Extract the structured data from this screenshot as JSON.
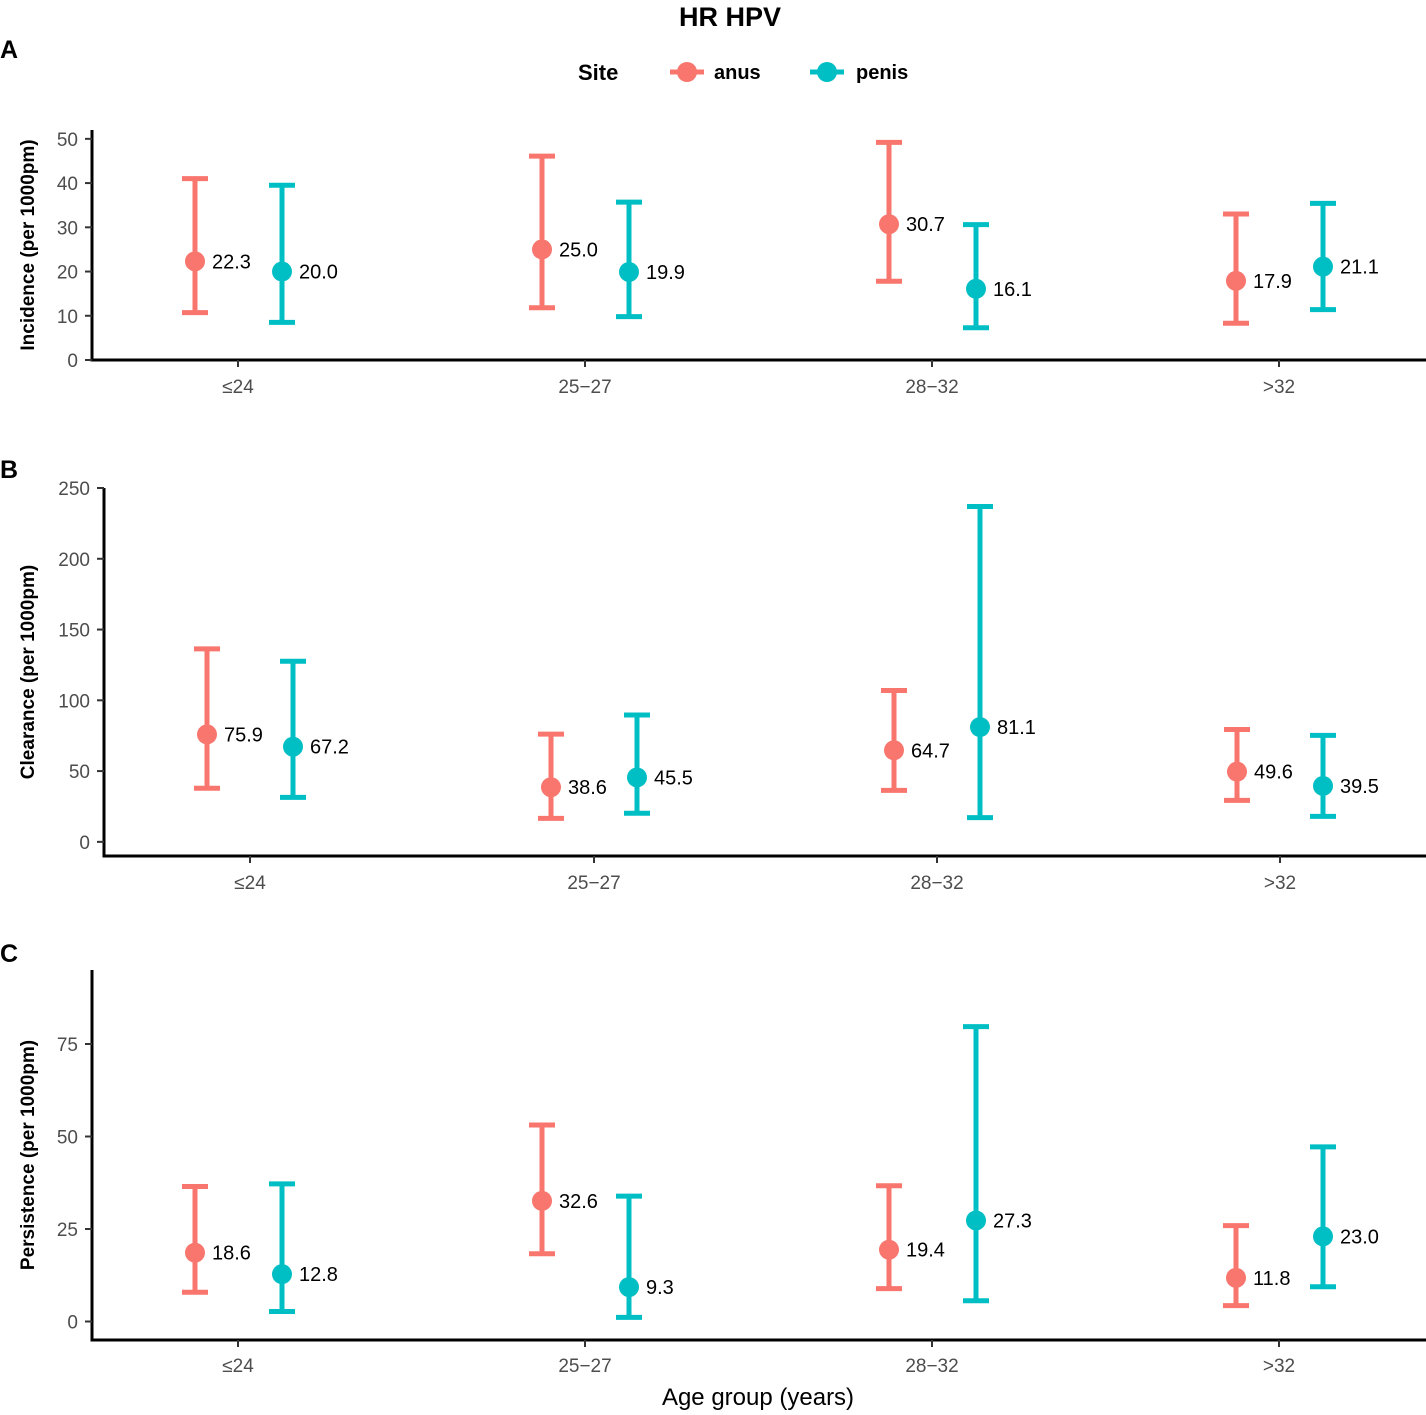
{
  "chart_data": {
    "type": "errorbar",
    "title": "HR HPV",
    "xlabel": "Age group (years)",
    "categories": [
      "≤24",
      "25−27",
      "28−32",
      ">32"
    ],
    "legend": {
      "title": "Site",
      "placement": "top",
      "entries": [
        {
          "name": "anus",
          "color": "#F8766D"
        },
        {
          "name": "penis",
          "color": "#00BFC4"
        }
      ]
    },
    "panels": [
      {
        "letter": "A",
        "ylabel": "Incidence (per 1000pm)",
        "ylim": [
          0,
          52
        ],
        "yticks": [
          0,
          10,
          20,
          30,
          40,
          50
        ],
        "series": [
          {
            "name": "anus",
            "color": "#F8766D",
            "values": [
              22.3,
              25.0,
              30.7,
              17.9
            ],
            "labels": [
              "22.3",
              "25.0",
              "30.7",
              "17.9"
            ],
            "lower": [
              10.7,
              11.8,
              17.8,
              8.3
            ],
            "upper": [
              41.0,
              46.1,
              49.2,
              33.0
            ]
          },
          {
            "name": "penis",
            "color": "#00BFC4",
            "values": [
              20.0,
              19.9,
              16.1,
              21.1
            ],
            "labels": [
              "20.0",
              "19.9",
              "16.1",
              "21.1"
            ],
            "lower": [
              8.5,
              9.8,
              7.3,
              11.4
            ],
            "upper": [
              39.5,
              35.7,
              30.6,
              35.4
            ]
          }
        ]
      },
      {
        "letter": "B",
        "ylabel": "Clearance (per 1000pm)",
        "ylim": [
          -10,
          250
        ],
        "yticks": [
          0,
          50,
          100,
          150,
          200,
          250
        ],
        "series": [
          {
            "name": "anus",
            "color": "#F8766D",
            "values": [
              75.9,
              38.6,
              64.7,
              49.6
            ],
            "labels": [
              "75.9",
              "38.6",
              "64.7",
              "49.6"
            ],
            "lower": [
              37.9,
              16.6,
              36.4,
              29.3
            ],
            "upper": [
              136.3,
              76.1,
              106.9,
              79.4
            ]
          },
          {
            "name": "penis",
            "color": "#00BFC4",
            "values": [
              67.2,
              45.5,
              81.1,
              39.5
            ],
            "labels": [
              "67.2",
              "45.5",
              "81.1",
              "39.5"
            ],
            "lower": [
              31.4,
              20.2,
              17.1,
              18.0
            ],
            "upper": [
              127.6,
              89.6,
              236.9,
              75.2
            ]
          }
        ]
      },
      {
        "letter": "C",
        "ylabel": "Persistence (per 1000pm)",
        "ylim": [
          -5,
          95
        ],
        "yticks": [
          0,
          25,
          50,
          75
        ],
        "series": [
          {
            "name": "anus",
            "color": "#F8766D",
            "values": [
              18.6,
              32.6,
              19.4,
              11.8
            ],
            "labels": [
              "18.6",
              "32.6",
              "19.4",
              "11.8"
            ],
            "lower": [
              7.9,
              18.3,
              8.9,
              4.3
            ],
            "upper": [
              36.5,
              53.1,
              36.7,
              25.9
            ]
          },
          {
            "name": "penis",
            "color": "#00BFC4",
            "values": [
              12.8,
              9.3,
              27.3,
              23.0
            ],
            "labels": [
              "12.8",
              "9.3",
              "27.3",
              "23.0"
            ],
            "lower": [
              2.7,
              1.1,
              5.6,
              9.4
            ],
            "upper": [
              37.2,
              33.9,
              79.7,
              47.2
            ]
          }
        ]
      }
    ]
  }
}
